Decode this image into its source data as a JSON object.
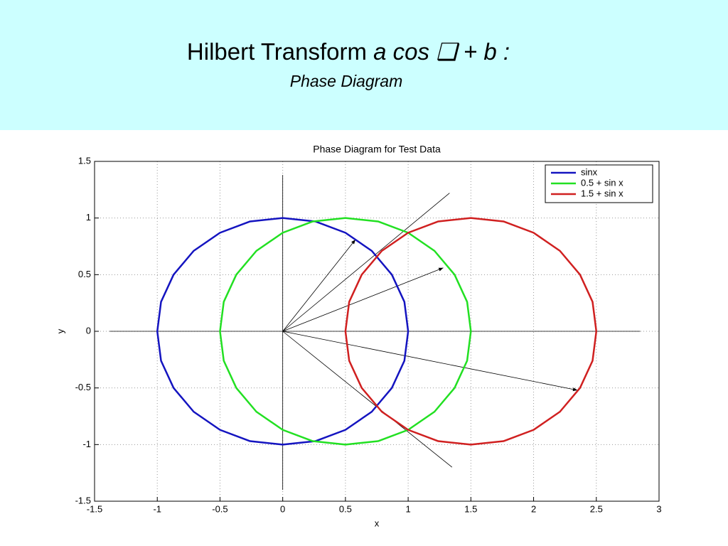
{
  "slide": {
    "title": [
      "Hilbert Transform",
      "a cos ❑ + b :"
    ],
    "subtitle": "Phase Diagram"
  },
  "chart_data": {
    "type": "line",
    "title": "Phase Diagram for Test Data",
    "x_label": "x",
    "y_label": "y",
    "xlim": [
      -1.5,
      3
    ],
    "ylim": [
      -1.5,
      1.5
    ],
    "xticks": [
      -1.5,
      -1,
      -0.5,
      0,
      0.5,
      1,
      1.5,
      2,
      2.5,
      3
    ],
    "yticks": [
      -1.5,
      -1,
      -0.5,
      0,
      0.5,
      1,
      1.5
    ],
    "grid": true,
    "legend": "upper right",
    "series": [
      {
        "name": "sinx",
        "color": "#1414c0",
        "x": [
          1,
          0.97,
          0.87,
          0.71,
          0.5,
          0.26,
          0,
          -0.26,
          -0.5,
          -0.71,
          -0.87,
          -0.97,
          -1,
          -0.97,
          -0.87,
          -0.71,
          -0.5,
          -0.26,
          0,
          0.26,
          0.5,
          0.71,
          0.87,
          0.97,
          1
        ],
        "values": [
          0,
          0.26,
          0.5,
          0.71,
          0.87,
          0.97,
          1,
          0.97,
          0.87,
          0.71,
          0.5,
          0.26,
          0,
          -0.26,
          -0.5,
          -0.71,
          -0.87,
          -0.97,
          -1,
          -0.97,
          -0.87,
          -0.71,
          -0.5,
          -0.26,
          0
        ]
      },
      {
        "name": "0.5 + sin x",
        "color": "#22e022",
        "x": [
          1.5,
          1.47,
          1.37,
          1.21,
          1,
          0.76,
          0.5,
          0.24,
          0,
          -0.21,
          -0.37,
          -0.47,
          -0.5,
          -0.47,
          -0.37,
          -0.21,
          0,
          0.24,
          0.5,
          0.76,
          1,
          1.21,
          1.37,
          1.47,
          1.5
        ],
        "values": [
          0,
          0.26,
          0.5,
          0.71,
          0.87,
          0.97,
          1,
          0.97,
          0.87,
          0.71,
          0.5,
          0.26,
          0,
          -0.26,
          -0.5,
          -0.71,
          -0.87,
          -0.97,
          -1,
          -0.97,
          -0.87,
          -0.71,
          -0.5,
          -0.26,
          0
        ]
      },
      {
        "name": "1.5 + sin x",
        "color": "#d02020",
        "x": [
          2.5,
          2.47,
          2.37,
          2.21,
          2,
          1.76,
          1.5,
          1.24,
          1,
          0.79,
          0.63,
          0.53,
          0.5,
          0.53,
          0.63,
          0.79,
          1,
          1.24,
          1.5,
          1.76,
          2,
          2.21,
          2.37,
          2.47,
          2.5
        ],
        "values": [
          0,
          0.26,
          0.5,
          0.71,
          0.87,
          0.97,
          1,
          0.97,
          0.87,
          0.71,
          0.5,
          0.26,
          0,
          -0.26,
          -0.5,
          -0.71,
          -0.87,
          -0.97,
          -1,
          -0.97,
          -0.87,
          -0.71,
          -0.5,
          -0.26,
          0
        ]
      }
    ],
    "lines": [
      {
        "x": [
          -1.38,
          2.85
        ],
        "y": [
          0,
          0
        ]
      },
      {
        "x": [
          0,
          0
        ],
        "y": [
          -1.4,
          1.38
        ]
      },
      {
        "x": [
          0,
          1.33
        ],
        "y": [
          0,
          1.22
        ]
      },
      {
        "x": [
          0,
          1.35
        ],
        "y": [
          0,
          -1.2
        ]
      }
    ],
    "arrows": [
      {
        "x": [
          0,
          0.58
        ],
        "y": [
          0,
          0.81
        ]
      },
      {
        "x": [
          0,
          1.28
        ],
        "y": [
          0,
          0.56
        ]
      },
      {
        "x": [
          0,
          2.35
        ],
        "y": [
          0,
          -0.52
        ]
      }
    ]
  }
}
